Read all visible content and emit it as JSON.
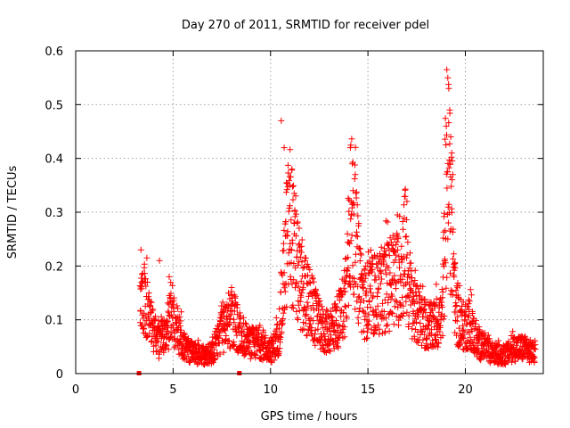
{
  "chart_data": {
    "type": "scatter",
    "title": "Day 270 of 2011, SRMTID for receiver pdel",
    "xlabel": "GPS time / hours",
    "ylabel": "SRMTID / TECUs",
    "xlim": [
      0,
      24
    ],
    "ylim": [
      0,
      0.6
    ],
    "xticks": [
      0,
      5,
      10,
      15,
      20
    ],
    "xtick_labels": [
      "0",
      "5",
      "10",
      "15",
      "20"
    ],
    "yticks": [
      0,
      0.1,
      0.2,
      0.3,
      0.4,
      0.5,
      0.6
    ],
    "ytick_labels": [
      "0",
      "0.1",
      "0.2",
      "0.3",
      "0.4",
      "0.5",
      "0.6"
    ],
    "grid": true,
    "marker": "+",
    "color": "#ff0000",
    "gap_markers_x": [
      3.25,
      8.4
    ],
    "envelope": [
      [
        3.3,
        0.12
      ],
      [
        3.5,
        0.16
      ],
      [
        3.7,
        0.12
      ],
      [
        4.0,
        0.08
      ],
      [
        4.3,
        0.06
      ],
      [
        4.6,
        0.08
      ],
      [
        4.9,
        0.11
      ],
      [
        5.2,
        0.09
      ],
      [
        5.6,
        0.05
      ],
      [
        6.0,
        0.04
      ],
      [
        6.5,
        0.035
      ],
      [
        7.0,
        0.04
      ],
      [
        7.4,
        0.08
      ],
      [
        7.8,
        0.09
      ],
      [
        8.1,
        0.11
      ],
      [
        8.5,
        0.07
      ],
      [
        9.0,
        0.06
      ],
      [
        9.5,
        0.06
      ],
      [
        10.0,
        0.04
      ],
      [
        10.4,
        0.07
      ],
      [
        10.6,
        0.14
      ],
      [
        10.8,
        0.25
      ],
      [
        11.0,
        0.3
      ],
      [
        11.2,
        0.24
      ],
      [
        11.5,
        0.17
      ],
      [
        11.8,
        0.15
      ],
      [
        12.1,
        0.13
      ],
      [
        12.4,
        0.1
      ],
      [
        12.8,
        0.08
      ],
      [
        13.2,
        0.09
      ],
      [
        13.6,
        0.11
      ],
      [
        13.9,
        0.17
      ],
      [
        14.1,
        0.32
      ],
      [
        14.3,
        0.28
      ],
      [
        14.5,
        0.2
      ],
      [
        14.8,
        0.14
      ],
      [
        15.2,
        0.15
      ],
      [
        15.6,
        0.16
      ],
      [
        16.0,
        0.17
      ],
      [
        16.4,
        0.18
      ],
      [
        16.7,
        0.2
      ],
      [
        16.9,
        0.25
      ],
      [
        17.1,
        0.17
      ],
      [
        17.4,
        0.12
      ],
      [
        17.8,
        0.1
      ],
      [
        18.3,
        0.09
      ],
      [
        18.8,
        0.11
      ],
      [
        19.1,
        0.4
      ],
      [
        19.3,
        0.3
      ],
      [
        19.5,
        0.12
      ],
      [
        19.8,
        0.09
      ],
      [
        20.2,
        0.1
      ],
      [
        20.6,
        0.06
      ],
      [
        21.0,
        0.05
      ],
      [
        21.5,
        0.04
      ],
      [
        22.0,
        0.035
      ],
      [
        22.5,
        0.05
      ],
      [
        23.0,
        0.05
      ],
      [
        23.5,
        0.04
      ]
    ],
    "peaks": [
      [
        3.35,
        0.23
      ],
      [
        4.3,
        0.21
      ],
      [
        4.8,
        0.18
      ],
      [
        8.0,
        0.16
      ],
      [
        10.55,
        0.47
      ],
      [
        10.7,
        0.42
      ],
      [
        11.1,
        0.38
      ],
      [
        11.0,
        0.35
      ],
      [
        14.1,
        0.42
      ],
      [
        14.2,
        0.39
      ],
      [
        14.35,
        0.37
      ],
      [
        17.0,
        0.32
      ],
      [
        19.05,
        0.565
      ],
      [
        19.1,
        0.55
      ],
      [
        19.15,
        0.53
      ],
      [
        19.2,
        0.49
      ],
      [
        19.25,
        0.44
      ],
      [
        19.3,
        0.41
      ],
      [
        19.35,
        0.37
      ]
    ]
  }
}
